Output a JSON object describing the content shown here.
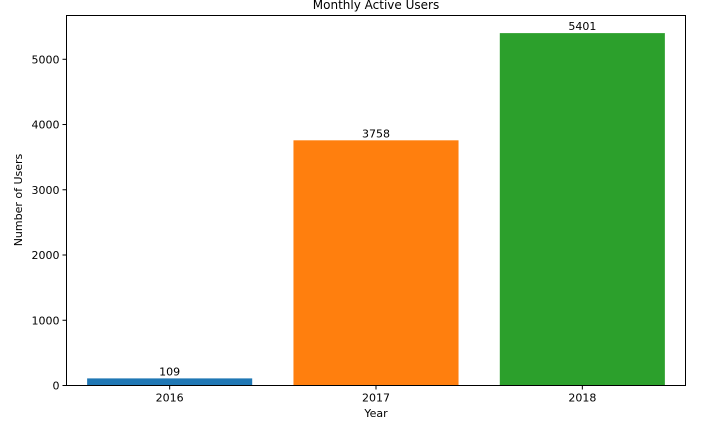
{
  "chart_data": {
    "type": "bar",
    "title": "Monthly Active Users",
    "xlabel": "Year",
    "ylabel": "Number of Users",
    "categories": [
      "2016",
      "2017",
      "2018"
    ],
    "values": [
      109,
      3758,
      5401
    ],
    "data_labels": [
      "109",
      "3758",
      "5401"
    ],
    "bar_colors": [
      "#1f77b4",
      "#ff7f0e",
      "#2ca02c"
    ],
    "ylim": [
      0,
      5671
    ],
    "yticks": [
      0,
      1000,
      2000,
      3000,
      4000,
      5000
    ],
    "ytick_labels": [
      "0",
      "1000",
      "2000",
      "3000",
      "4000",
      "5000"
    ],
    "grid": false,
    "legend": false
  }
}
